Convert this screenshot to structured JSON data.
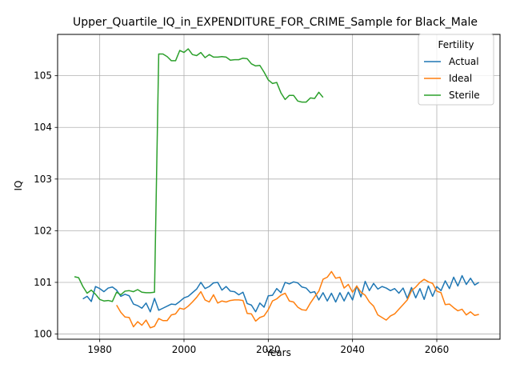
{
  "chart_data": {
    "type": "line",
    "title": "Upper_Quartile_IQ_in_EXPENDITURE_FOR_CRIME_Sample for Black_Male",
    "xlabel": "Years",
    "ylabel": "IQ",
    "xlim": [
      1970,
      2075
    ],
    "ylim": [
      99.9,
      105.8
    ],
    "xticks": [
      1980,
      2000,
      2020,
      2040,
      2060
    ],
    "yticks": [
      100,
      101,
      102,
      103,
      104,
      105
    ],
    "grid": true,
    "legend": {
      "title": "Fertility",
      "placement": "top-right"
    },
    "series": [
      {
        "name": "Actual",
        "color": "#1f77b4",
        "x": [
          1976,
          1977,
          1978,
          1979,
          1980,
          1981,
          1982,
          1983,
          1984,
          1985,
          1986,
          1987,
          1988,
          1989,
          1990,
          1991,
          1992,
          1993,
          1994,
          1995,
          1996,
          1997,
          1998,
          1999,
          2000,
          2001,
          2002,
          2003,
          2004,
          2005,
          2006,
          2007,
          2008,
          2009,
          2010,
          2011,
          2012,
          2013,
          2014,
          2015,
          2016,
          2017,
          2018,
          2019,
          2020,
          2021,
          2022,
          2023,
          2024,
          2025,
          2026,
          2027,
          2028,
          2029,
          2030,
          2031,
          2032,
          2033,
          2034,
          2035,
          2036,
          2037,
          2038,
          2039,
          2040,
          2041,
          2042,
          2043,
          2044,
          2045,
          2046,
          2047,
          2048,
          2049,
          2050,
          2051,
          2052,
          2053,
          2054,
          2055,
          2056,
          2057,
          2058,
          2059,
          2060,
          2061,
          2062,
          2063,
          2064,
          2065,
          2066,
          2067,
          2068,
          2069,
          2070
        ],
        "values": [
          100.68,
          100.73,
          100.63,
          100.92,
          100.88,
          100.82,
          100.89,
          100.91,
          100.85,
          100.73,
          100.77,
          100.74,
          100.58,
          100.55,
          100.5,
          100.6,
          100.43,
          100.69,
          100.46,
          100.5,
          100.54,
          100.58,
          100.57,
          100.63,
          100.7,
          100.73,
          100.8,
          100.87,
          101.0,
          100.88,
          100.92,
          100.99,
          101.0,
          100.85,
          100.92,
          100.83,
          100.82,
          100.76,
          100.81,
          100.59,
          100.56,
          100.43,
          100.6,
          100.52,
          100.74,
          100.75,
          100.88,
          100.8,
          101.0,
          100.97,
          101.01,
          100.99,
          100.91,
          100.89,
          100.8,
          100.82,
          100.66,
          100.8,
          100.64,
          100.79,
          100.62,
          100.8,
          100.64,
          100.81,
          100.66,
          100.93,
          100.72,
          101.02,
          100.84,
          100.98,
          100.87,
          100.92,
          100.89,
          100.84,
          100.88,
          100.79,
          100.89,
          100.69,
          100.9,
          100.7,
          100.88,
          100.67,
          100.93,
          100.73,
          100.92,
          100.84,
          101.03,
          100.88,
          101.1,
          100.93,
          101.13,
          100.96,
          101.08,
          100.95,
          101.0
        ]
      },
      {
        "name": "Ideal",
        "color": "#ff7f0e",
        "x": [
          1984,
          1985,
          1986,
          1987,
          1988,
          1989,
          1990,
          1991,
          1992,
          1993,
          1994,
          1995,
          1996,
          1997,
          1998,
          1999,
          2000,
          2001,
          2002,
          2003,
          2004,
          2005,
          2006,
          2007,
          2008,
          2009,
          2010,
          2011,
          2012,
          2013,
          2014,
          2015,
          2016,
          2017,
          2018,
          2019,
          2020,
          2021,
          2022,
          2023,
          2024,
          2025,
          2026,
          2027,
          2028,
          2029,
          2030,
          2031,
          2032,
          2033,
          2034,
          2035,
          2036,
          2037,
          2038,
          2039,
          2040,
          2041,
          2042,
          2043,
          2044,
          2045,
          2046,
          2047,
          2048,
          2049,
          2050,
          2051,
          2052,
          2053,
          2054,
          2055,
          2056,
          2057,
          2058,
          2059,
          2060,
          2061,
          2062,
          2063,
          2064,
          2065,
          2066,
          2067,
          2068,
          2069,
          2070
        ],
        "values": [
          100.56,
          100.42,
          100.33,
          100.32,
          100.14,
          100.24,
          100.17,
          100.27,
          100.12,
          100.15,
          100.3,
          100.26,
          100.26,
          100.37,
          100.39,
          100.5,
          100.48,
          100.54,
          100.62,
          100.71,
          100.82,
          100.66,
          100.62,
          100.76,
          100.6,
          100.64,
          100.62,
          100.65,
          100.66,
          100.66,
          100.65,
          100.4,
          100.39,
          100.25,
          100.32,
          100.35,
          100.47,
          100.64,
          100.68,
          100.75,
          100.79,
          100.64,
          100.62,
          100.52,
          100.47,
          100.46,
          100.6,
          100.72,
          100.83,
          101.06,
          101.1,
          101.21,
          101.08,
          101.1,
          100.89,
          100.96,
          100.81,
          100.93,
          100.81,
          100.75,
          100.62,
          100.54,
          100.37,
          100.32,
          100.27,
          100.35,
          100.39,
          100.48,
          100.57,
          100.66,
          100.84,
          100.91,
          101.0,
          101.06,
          101.01,
          100.98,
          100.83,
          100.8,
          100.57,
          100.58,
          100.51,
          100.45,
          100.48,
          100.37,
          100.43,
          100.36,
          100.38
        ]
      },
      {
        "name": "Sterile",
        "color": "#2ca02c",
        "x": [
          1974,
          1975,
          1976,
          1977,
          1978,
          1979,
          1980,
          1981,
          1982,
          1983,
          1984,
          1985,
          1986,
          1987,
          1988,
          1989,
          1990,
          1991,
          1992,
          1993,
          1994,
          1995,
          1996,
          1997,
          1998,
          1999,
          2000,
          2001,
          2002,
          2003,
          2004,
          2005,
          2006,
          2007,
          2008,
          2009,
          2010,
          2011,
          2012,
          2013,
          2014,
          2015,
          2016,
          2017,
          2018,
          2019,
          2020,
          2021,
          2022,
          2023,
          2024,
          2025,
          2026,
          2027,
          2028,
          2029,
          2030,
          2031,
          2032,
          2033
        ],
        "values": [
          101.11,
          101.09,
          100.92,
          100.79,
          100.85,
          100.77,
          100.67,
          100.64,
          100.65,
          100.63,
          100.81,
          100.76,
          100.83,
          100.84,
          100.82,
          100.86,
          100.81,
          100.8,
          100.8,
          100.81,
          105.42,
          105.42,
          105.37,
          105.29,
          105.29,
          105.49,
          105.45,
          105.52,
          105.41,
          105.39,
          105.45,
          105.35,
          105.41,
          105.36,
          105.36,
          105.37,
          105.36,
          105.3,
          105.31,
          105.31,
          105.34,
          105.33,
          105.23,
          105.19,
          105.2,
          105.07,
          104.92,
          104.85,
          104.87,
          104.67,
          104.54,
          104.62,
          104.62,
          104.51,
          104.49,
          104.49,
          104.57,
          104.56,
          104.68,
          104.58
        ]
      }
    ]
  }
}
